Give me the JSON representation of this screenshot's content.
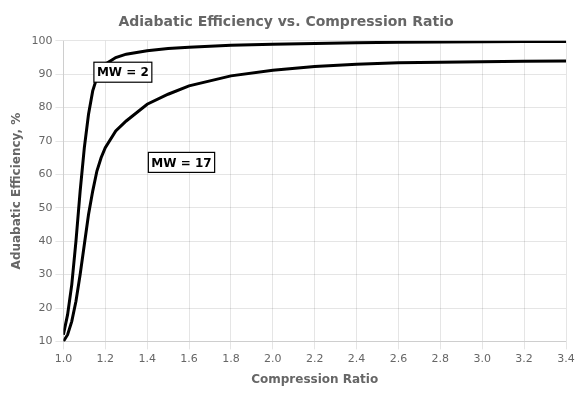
{
  "chart_data": {
    "type": "line",
    "title": "Adiabatic Efficiency vs. Compression Ratio",
    "xlabel": "Compression Ratio",
    "ylabel": "Aduabatic Efficiency, %",
    "x": [
      1.0,
      1.02,
      1.04,
      1.06,
      1.08,
      1.1,
      1.12,
      1.14,
      1.16,
      1.18,
      1.2,
      1.25,
      1.3,
      1.4,
      1.5,
      1.6,
      1.8,
      2.0,
      2.2,
      2.4,
      2.6,
      2.8,
      3.0,
      3.2,
      3.4
    ],
    "series": [
      {
        "color": "#000000",
        "values": [
          12,
          18,
          27,
          40,
          55,
          68,
          78,
          85,
          89,
          91.5,
          93,
          95,
          96,
          97,
          97.7,
          98.1,
          98.7,
          99.0,
          99.2,
          99.4,
          99.55,
          99.65,
          99.72,
          99.78,
          99.82
        ]
      },
      {
        "color": "#000000",
        "values": [
          10,
          12,
          16,
          22,
          30,
          39,
          48,
          55,
          61,
          65,
          68,
          73,
          76,
          81,
          84,
          86.5,
          89.5,
          91.2,
          92.3,
          93.0,
          93.4,
          93.6,
          93.75,
          93.85,
          93.92
        ]
      }
    ],
    "annotations": [
      {
        "text": "MW = 2",
        "x": 1.16,
        "y": 88.5
      },
      {
        "text": "MW = 17",
        "x": 1.42,
        "y": 61.5
      }
    ],
    "xlim": [
      1.0,
      3.4
    ],
    "ylim": [
      10,
      100
    ],
    "xticks": [
      {
        "value": 1.0,
        "label": "1.0"
      },
      1.2,
      1.4,
      1.6,
      1.8,
      {
        "value": 2.0,
        "label": "2.0"
      },
      2.2,
      2.4,
      2.6,
      2.8,
      {
        "value": 3.0,
        "label": "3.0"
      },
      3.2,
      3.4
    ],
    "yticks": [
      10,
      20,
      30,
      40,
      50,
      60,
      70,
      80,
      90,
      100
    ],
    "grid": true
  }
}
